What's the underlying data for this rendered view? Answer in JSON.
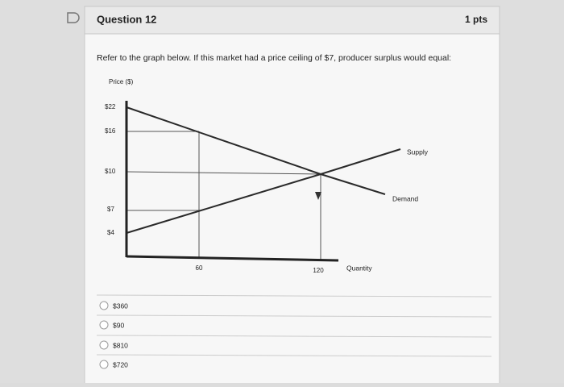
{
  "header": {
    "title": "Question 12",
    "points": "1 pts"
  },
  "question": "Refer to the graph below. If this market had a price ceiling of $7, producer surplus would equal:",
  "graph": {
    "y_label": "Price ($)",
    "y_ticks": [
      "$22",
      "$16",
      "$10",
      "$7",
      "$4"
    ],
    "x_ticks": [
      "60",
      "120"
    ],
    "x_label": "Quantity",
    "supply_label": "Supply",
    "demand_label": "Demand"
  },
  "answers": [
    "$360",
    "$90",
    "$810",
    "$720"
  ]
}
